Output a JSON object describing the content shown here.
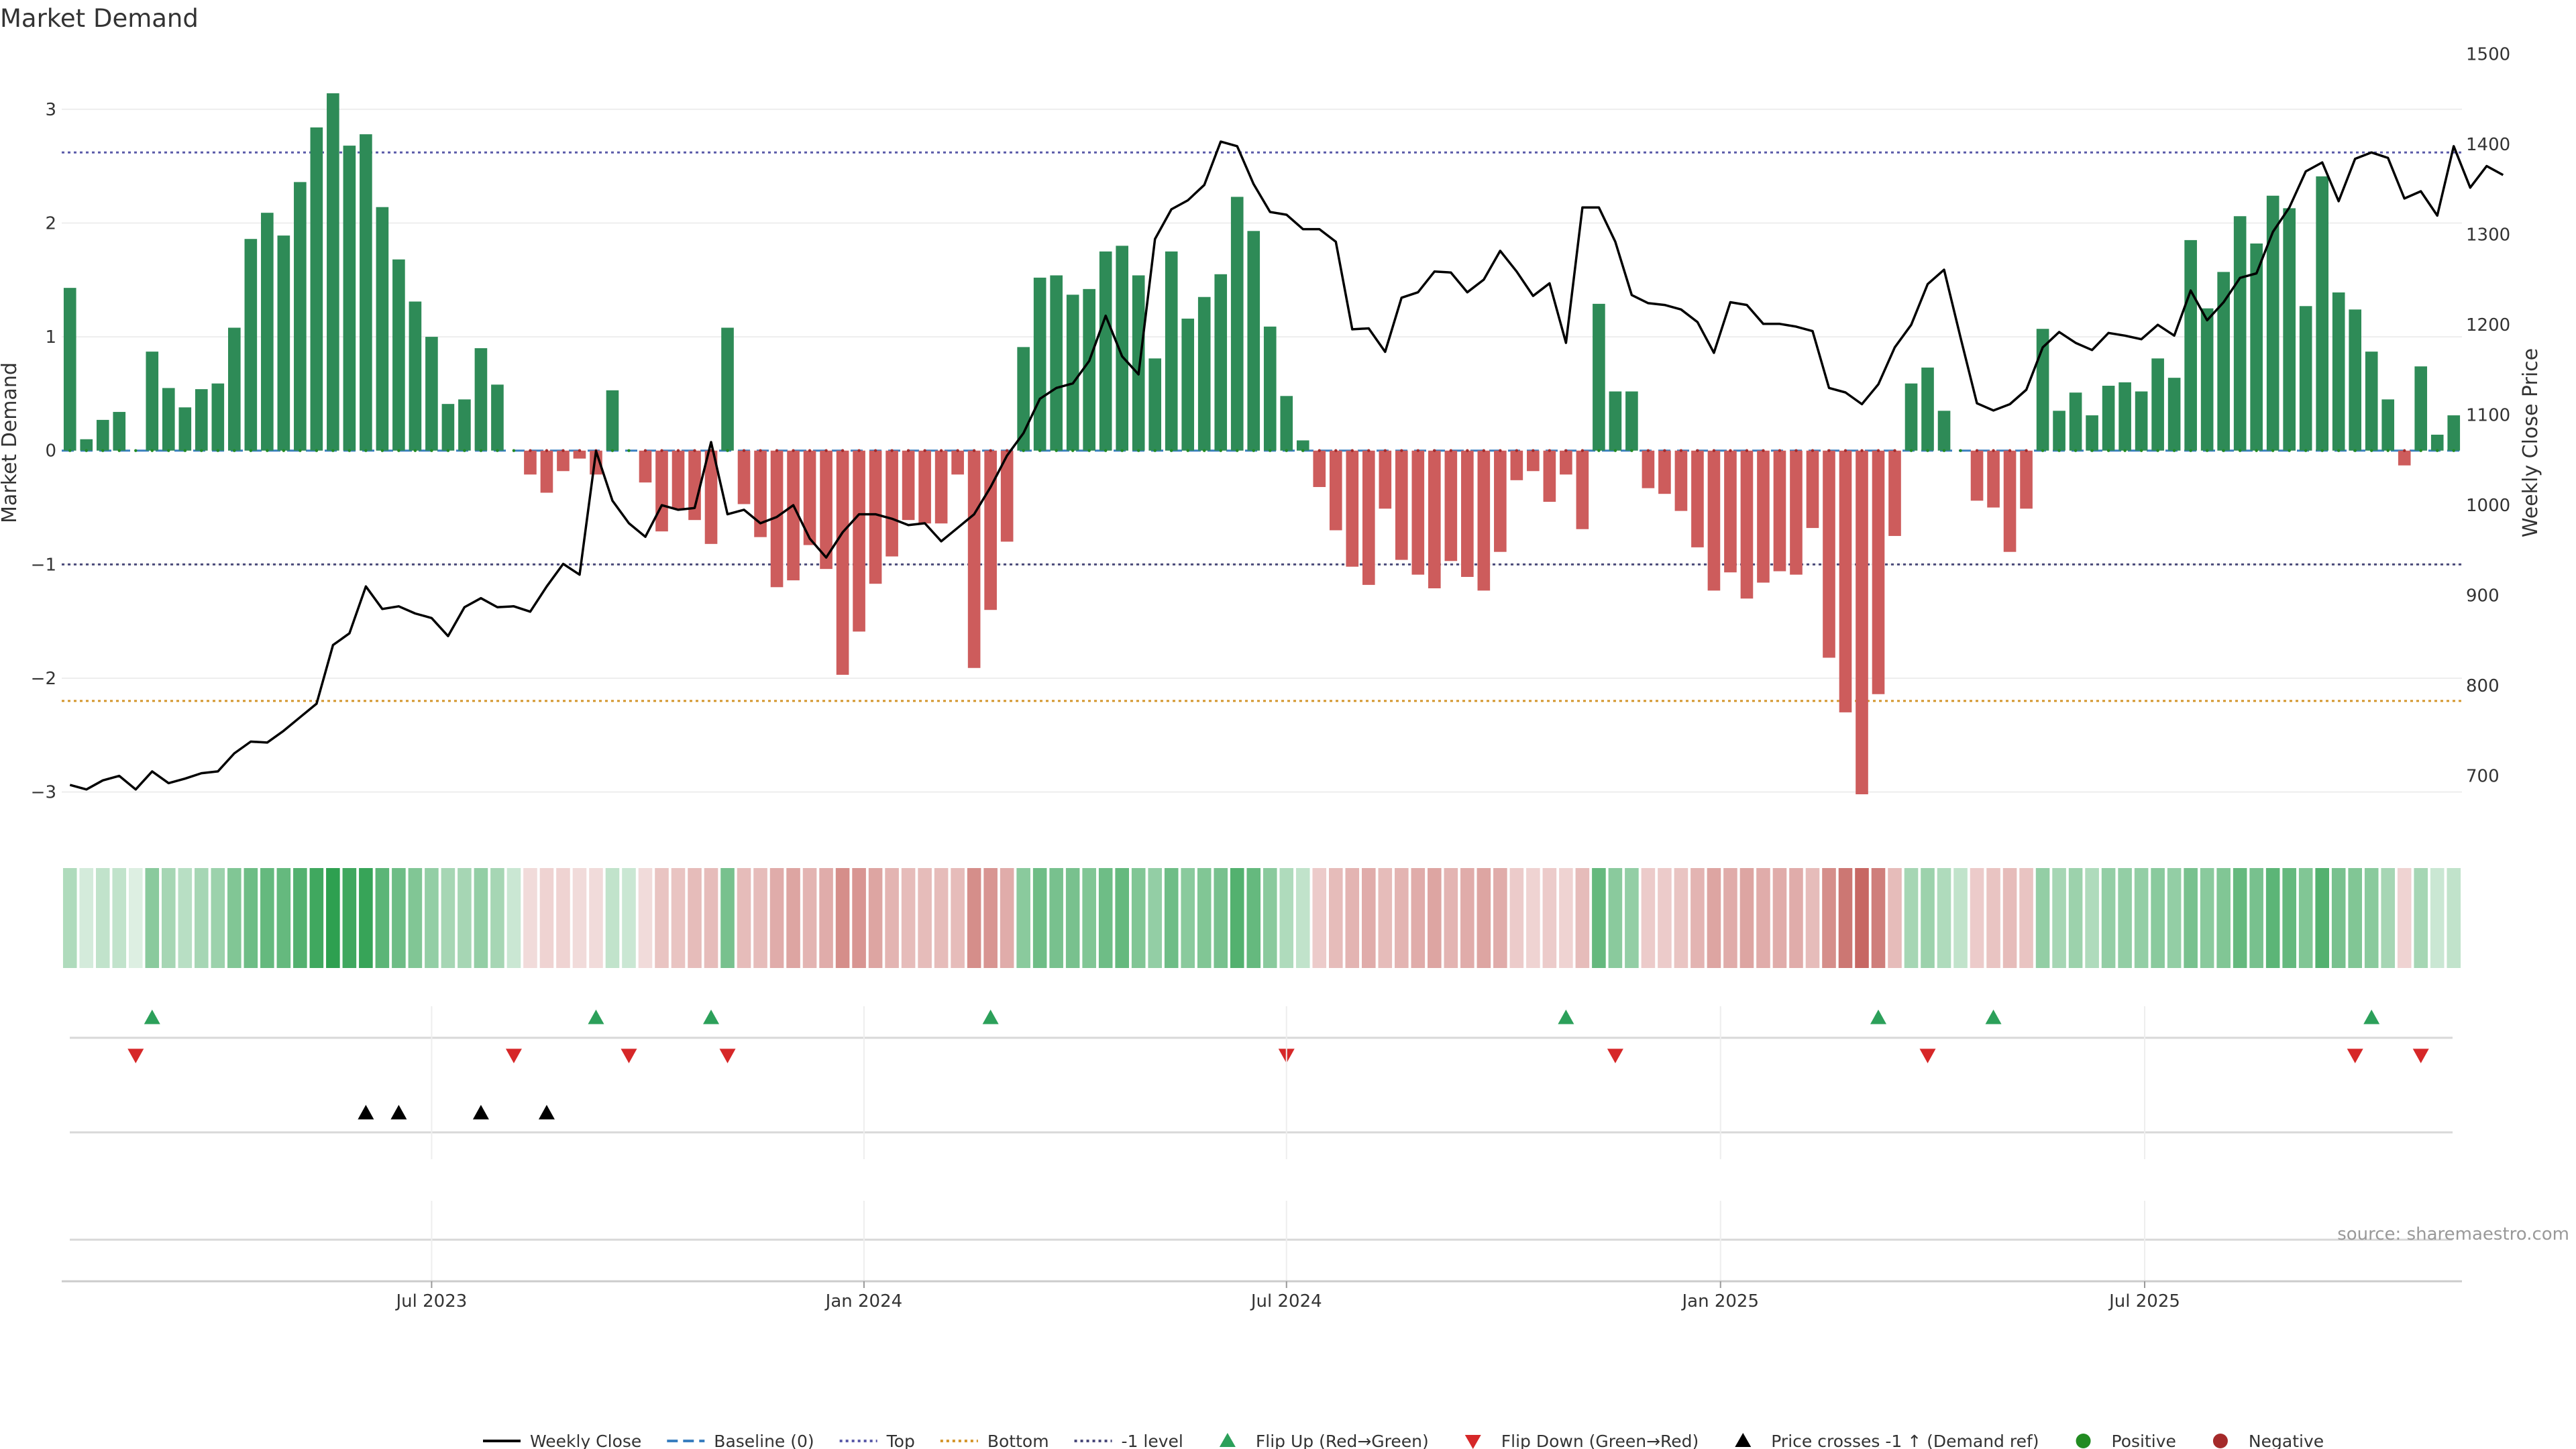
{
  "chart_data": {
    "type": "bar",
    "title": "Market Demand",
    "ylabel": "Market Demand",
    "y2label": "Weekly Close Price",
    "ylim": [
      -3.35,
      3.5
    ],
    "y2lim": [
      638,
      1502
    ],
    "yticks": [
      "3",
      "2",
      "1",
      "0",
      "−1",
      "−2",
      "−3"
    ],
    "y2ticks": [
      "1500",
      "1400",
      "1300",
      "1200",
      "1100",
      "1000",
      "900",
      "800",
      "700"
    ],
    "xticks": [
      {
        "label": "Jul 2023",
        "week": 22
      },
      {
        "label": "Jan 2024",
        "week": 48.3
      },
      {
        "label": "Jul 2024",
        "week": 74
      },
      {
        "label": "Jan 2025",
        "week": 100.4
      },
      {
        "label": "Jul 2025",
        "week": 126.2
      }
    ],
    "reference_lines": {
      "top": 2.62,
      "bottom": -2.2,
      "minus_one_level": -1,
      "baseline": 0,
      "top_color": "#5a5aa8",
      "bottom_color": "#d4962c",
      "minus_one_color": "#4a4a7a",
      "baseline_color": "#3a7fbf"
    },
    "colors": {
      "positive": "#2e8b57",
      "negative": "#cd5c5c",
      "price_line": "#000000",
      "flip_up": "#2ca05a",
      "flip_down": "#d62728",
      "cross_marker": "#000000",
      "positive_dot": "#228b22",
      "negative_dot": "#a52a2a"
    },
    "demand": [
      1.43,
      0.1,
      0.27,
      0.34,
      0,
      0.87,
      0.55,
      0.38,
      0.54,
      0.59,
      1.08,
      1.86,
      2.09,
      1.89,
      2.36,
      2.84,
      3.14,
      2.68,
      2.78,
      2.14,
      1.68,
      1.31,
      1,
      0.41,
      0.45,
      0.9,
      0.58,
      0,
      -0.21,
      -0.37,
      -0.18,
      -0.07,
      -0.21,
      0.53,
      0,
      -0.28,
      -0.71,
      -0.51,
      -0.61,
      -0.82,
      1.08,
      -0.47,
      -0.76,
      -1.2,
      -1.14,
      -0.83,
      -1.04,
      -1.97,
      -1.59,
      -1.17,
      -0.93,
      -0.61,
      -0.64,
      -0.64,
      -0.21,
      -1.91,
      -1.4,
      -0.8,
      0.91,
      1.52,
      1.54,
      1.37,
      1.42,
      1.75,
      1.8,
      1.54,
      0.81,
      1.75,
      1.16,
      1.35,
      1.55,
      2.23,
      1.93,
      1.09,
      0.48,
      0.09,
      -0.32,
      -0.7,
      -1.02,
      -1.18,
      -0.51,
      -0.96,
      -1.09,
      -1.21,
      -0.97,
      -1.11,
      -1.23,
      -0.89,
      -0.26,
      -0.18,
      -0.45,
      -0.21,
      -0.69,
      1.29,
      0.52,
      0.52,
      -0.33,
      -0.38,
      -0.53,
      -0.85,
      -1.23,
      -1.07,
      -1.3,
      -1.16,
      -1.06,
      -1.09,
      -0.68,
      -1.82,
      -2.3,
      -3.02,
      -2.14,
      -0.75,
      0.59,
      0.73,
      0.35,
      0,
      -0.44,
      -0.5,
      -0.89,
      -0.51,
      1.07,
      0.35,
      0.51,
      0.31,
      0.57,
      0.6,
      0.52,
      0.81,
      0.64,
      1.85,
      1.25,
      1.57,
      2.06,
      1.82,
      2.24,
      2.13,
      1.27,
      2.41,
      1.39,
      1.24,
      0.87,
      0.45,
      -0.13,
      0.74,
      0.14,
      0.31
    ],
    "close": [
      690,
      685,
      695,
      700,
      685,
      705,
      692,
      697,
      703,
      705,
      725,
      738,
      737,
      750,
      765,
      780,
      845,
      858,
      910,
      885,
      888,
      880,
      875,
      855,
      887,
      897,
      887,
      888,
      882,
      910,
      935,
      923,
      1060,
      1005,
      980,
      965,
      1000,
      995,
      997,
      1070,
      990,
      995,
      980,
      987,
      1000,
      963,
      942,
      970,
      990,
      990,
      985,
      978,
      980,
      960,
      975,
      990,
      1020,
      1055,
      1080,
      1118,
      1130,
      1135,
      1160,
      1210,
      1165,
      1145,
      1295,
      1328,
      1338,
      1355,
      1403,
      1398,
      1356,
      1325,
      1322,
      1306,
      1306,
      1292,
      1195,
      1196,
      1170,
      1230,
      1236,
      1259,
      1258,
      1236,
      1250,
      1282,
      1259,
      1232,
      1246,
      1180,
      1330,
      1330,
      1292,
      1233,
      1224,
      1222,
      1217,
      1203,
      1169,
      1225,
      1222,
      1201,
      1201,
      1198,
      1193,
      1130,
      1125,
      1112,
      1134,
      1175,
      1200,
      1245,
      1261,
      1186,
      1113,
      1105,
      1112,
      1128,
      1175,
      1192,
      1180,
      1172,
      1191,
      1188,
      1184,
      1200,
      1188,
      1238,
      1205,
      1225,
      1252,
      1257,
      1303,
      1330,
      1370,
      1380,
      1337,
      1384,
      1391,
      1385,
      1340,
      1348,
      1321,
      1398,
      1352,
      1376,
      1366
    ],
    "heat": [
      0.3,
      0.1,
      0.2,
      0.2,
      0.05,
      0.5,
      0.35,
      0.25,
      0.35,
      0.4,
      0.55,
      0.65,
      0.7,
      0.7,
      0.8,
      0.9,
      1,
      0.9,
      0.95,
      0.75,
      0.65,
      0.55,
      0.45,
      0.35,
      0.35,
      0.45,
      0.35,
      0.15,
      0.1,
      0.15,
      0.15,
      0.1,
      0.1,
      0.2,
      0.15,
      0.1,
      0.25,
      0.25,
      0.3,
      0.3,
      0.6,
      0.3,
      0.3,
      0.4,
      0.45,
      0.35,
      0.4,
      0.6,
      0.55,
      0.45,
      0.35,
      0.3,
      0.3,
      0.3,
      0.3,
      0.6,
      0.55,
      0.4,
      0.5,
      0.65,
      0.6,
      0.6,
      0.55,
      0.65,
      0.7,
      0.55,
      0.45,
      0.65,
      0.5,
      0.55,
      0.6,
      0.8,
      0.7,
      0.5,
      0.3,
      0.2,
      0.2,
      0.3,
      0.35,
      0.4,
      0.3,
      0.35,
      0.4,
      0.45,
      0.35,
      0.4,
      0.45,
      0.4,
      0.2,
      0.15,
      0.2,
      0.15,
      0.3,
      0.7,
      0.5,
      0.45,
      0.2,
      0.2,
      0.25,
      0.35,
      0.45,
      0.4,
      0.45,
      0.4,
      0.4,
      0.4,
      0.3,
      0.6,
      0.75,
      0.85,
      0.7,
      0.3,
      0.35,
      0.4,
      0.3,
      0.2,
      0.2,
      0.25,
      0.3,
      0.25,
      0.45,
      0.35,
      0.4,
      0.3,
      0.45,
      0.45,
      0.45,
      0.5,
      0.45,
      0.6,
      0.5,
      0.55,
      0.7,
      0.6,
      0.75,
      0.7,
      0.55,
      0.8,
      0.6,
      0.55,
      0.5,
      0.35,
      0.15,
      0.35,
      0.15,
      0.2
    ],
    "flip_up_weeks": [
      5,
      32,
      39,
      56,
      91,
      110,
      117,
      140
    ],
    "flip_down_weeks": [
      4,
      27,
      34,
      40,
      74,
      94,
      113,
      139,
      143
    ],
    "cross_weeks": [
      18,
      20,
      25,
      29
    ],
    "legend": [
      {
        "label": "Weekly Close",
        "kind": "line"
      },
      {
        "label": "Baseline (0)",
        "kind": "dash-baseline"
      },
      {
        "label": "Top",
        "kind": "dot-top"
      },
      {
        "label": "Bottom",
        "kind": "dot-bottom"
      },
      {
        "label": "-1 level",
        "kind": "dot-minus"
      },
      {
        "label": "Flip Up (Red→Green)",
        "kind": "tri-up"
      },
      {
        "label": "Flip Down (Green→Red)",
        "kind": "tri-down"
      },
      {
        "label": "Price crosses -1 ↑ (Demand ref)",
        "kind": "tri-cross"
      },
      {
        "label": "Positive",
        "kind": "dot-pos"
      },
      {
        "label": "Negative",
        "kind": "dot-neg"
      }
    ],
    "source": "source: sharemaestro.com",
    "legend_position": "bottom-center"
  }
}
